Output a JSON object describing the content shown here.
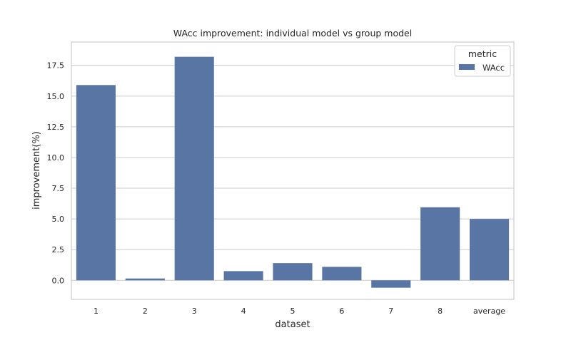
{
  "chart_data": {
    "type": "bar",
    "title": "WAcc improvement: individual model  vs  group model",
    "xlabel": "dataset",
    "ylabel": "improvement(%)",
    "categories": [
      "1",
      "2",
      "3",
      "4",
      "5",
      "6",
      "7",
      "8",
      "average"
    ],
    "series": [
      {
        "name": "WAcc",
        "values": [
          15.9,
          0.15,
          18.2,
          0.75,
          1.4,
          1.1,
          -0.6,
          5.95,
          5.0
        ]
      }
    ],
    "ylim": [
      -1.55,
      19.4
    ],
    "yticks": [
      "0.0",
      "2.5",
      "5.0",
      "7.5",
      "10.0",
      "12.5",
      "15.0",
      "17.5"
    ],
    "grid": true,
    "legend": {
      "title": "metric",
      "position": "top-right"
    },
    "colors": {
      "bar": "#5875a4",
      "grid": "#cccccc",
      "frame": "#cccccc",
      "text": "#262626"
    }
  }
}
